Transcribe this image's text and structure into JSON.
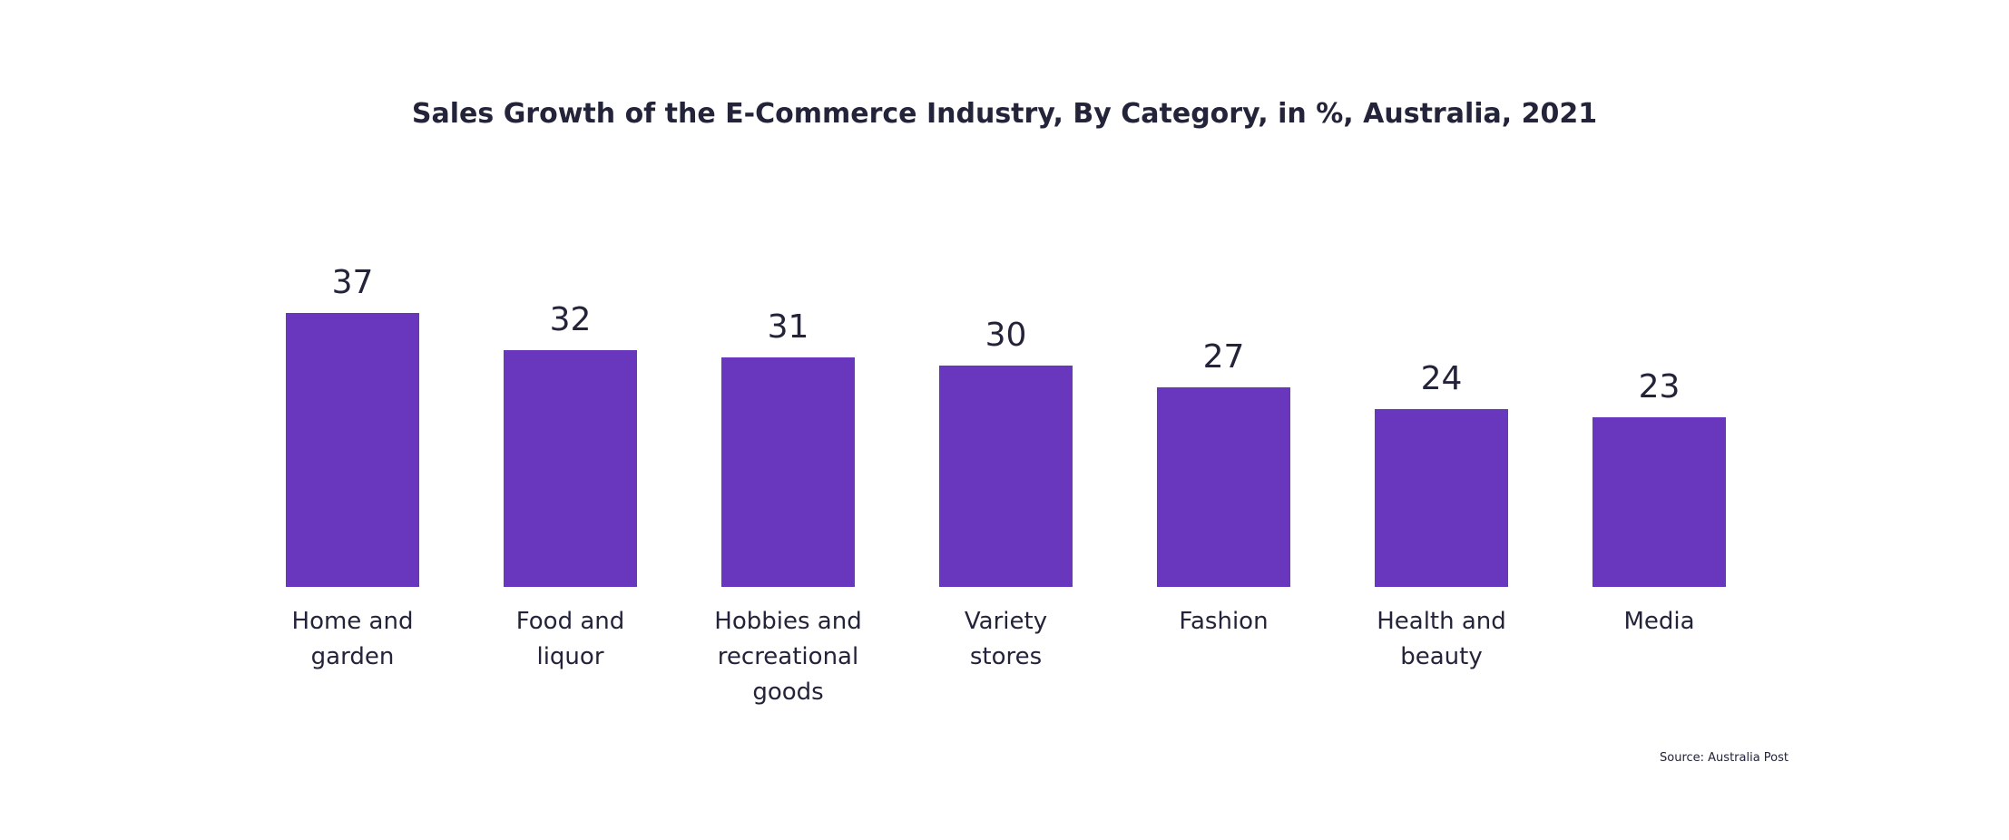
{
  "chart_data": {
    "type": "bar",
    "title": "Sales Growth of the E-Commerce Industry, By Category, in %, Australia, 2021",
    "categories": [
      "Home and garden",
      "Food and liquor",
      "Hobbies and recreational goods",
      "Variety stores",
      "Fashion",
      "Health and beauty",
      "Media"
    ],
    "values": [
      37,
      32,
      31,
      30,
      27,
      24,
      23
    ],
    "color": "#6937bd",
    "source": "Source: Australia Post"
  }
}
